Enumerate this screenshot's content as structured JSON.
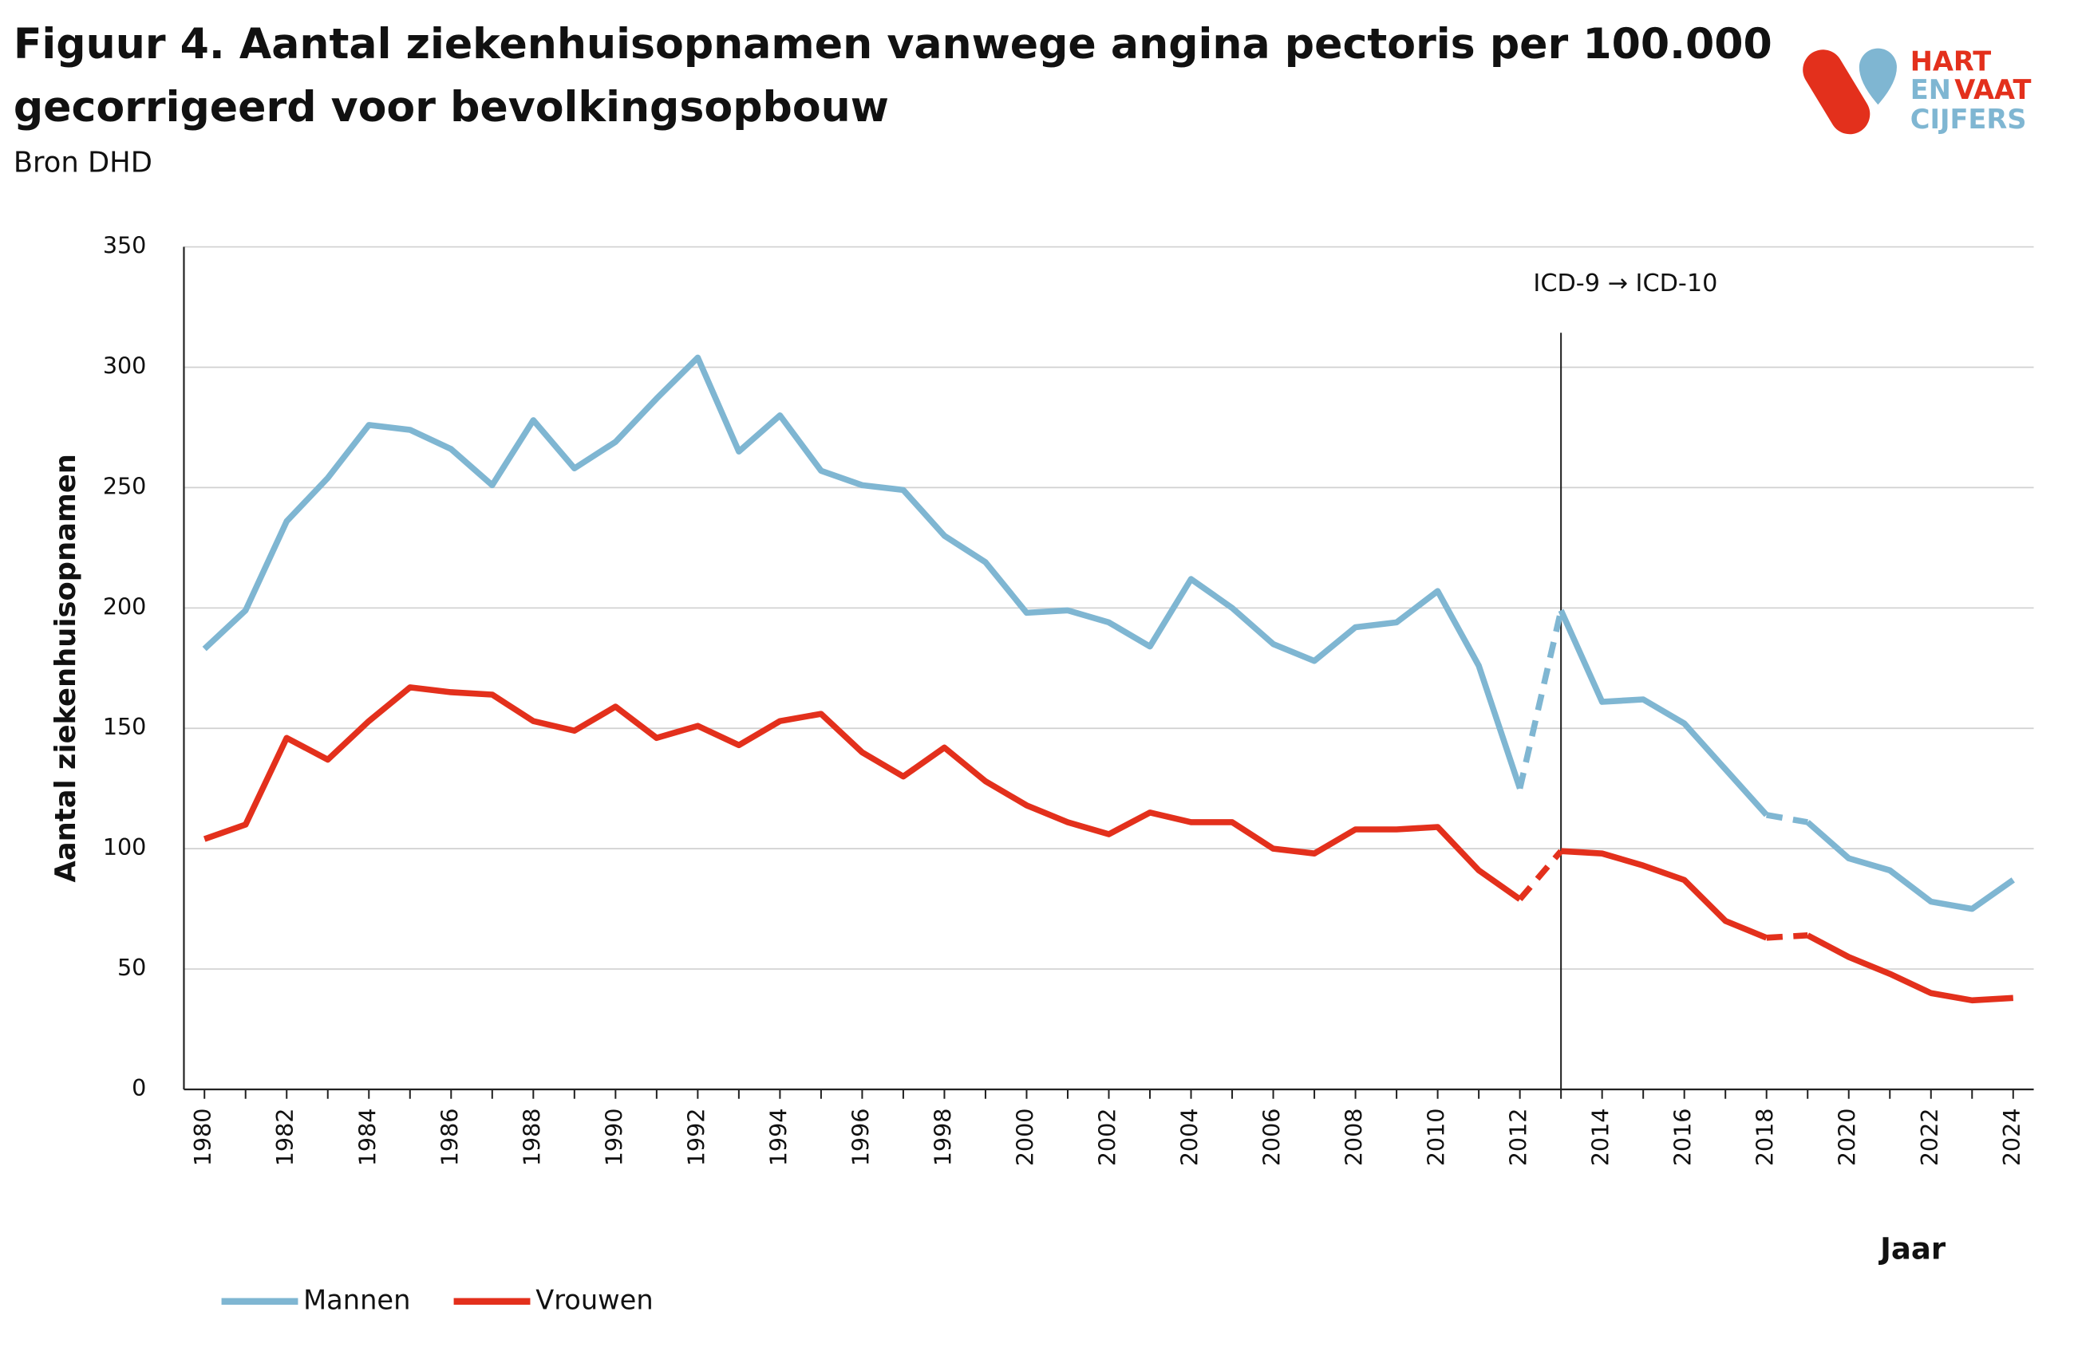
{
  "chart_data": {
    "type": "line",
    "title": "Figuur 4. Aantal ziekenhuisopnamen vanwege angina pectoris per 100.000",
    "title_line2": "gecorrigeerd voor bevolkingsopbouw",
    "subtitle": "Bron DHD",
    "logo": {
      "line1": "HART",
      "line2a": "EN",
      "line2b": "VAAT",
      "line3": "CIJFERS"
    },
    "y_label": "Aantal ziekenhuisopnamen",
    "x_label": "Jaar",
    "x": [
      1980,
      1981,
      1982,
      1983,
      1984,
      1985,
      1986,
      1987,
      1988,
      1989,
      1990,
      1991,
      1992,
      1993,
      1994,
      1995,
      1996,
      1997,
      1998,
      1999,
      2000,
      2001,
      2002,
      2003,
      2004,
      2005,
      2006,
      2007,
      2008,
      2009,
      2010,
      2011,
      2012,
      2013,
      2014,
      2015,
      2016,
      2017,
      2018,
      2019,
      2020,
      2021,
      2022,
      2023,
      2024
    ],
    "series": [
      {
        "name": "Mannen",
        "color": "#7fb6d2",
        "values": [
          183,
          199,
          236,
          254,
          276,
          274,
          266,
          251,
          278,
          258,
          269,
          287,
          304,
          265,
          280,
          257,
          251,
          249,
          230,
          219,
          198,
          199,
          194,
          184,
          212,
          200,
          185,
          178,
          192,
          194,
          207,
          176,
          125,
          199,
          161,
          162,
          152,
          133,
          114,
          111,
          96,
          91,
          78,
          75,
          87
        ]
      },
      {
        "name": "Vrouwen",
        "color": "#e3301c",
        "values": [
          104,
          110,
          146,
          137,
          153,
          167,
          165,
          164,
          153,
          149,
          159,
          146,
          151,
          143,
          153,
          156,
          140,
          130,
          142,
          128,
          118,
          111,
          106,
          115,
          111,
          111,
          100,
          98,
          108,
          108,
          109,
          91,
          79,
          99,
          98,
          93,
          87,
          70,
          63,
          64,
          55,
          48,
          40,
          37,
          38
        ]
      }
    ],
    "dashed_x": [
      [
        2012,
        2013
      ],
      [
        2018,
        2019
      ]
    ],
    "annotation": {
      "text": "ICD-9 → ICD-10",
      "x": 2013
    },
    "xlim": [
      1979.5,
      2024.5
    ],
    "xticks": [
      1980,
      1982,
      1984,
      1986,
      1988,
      1990,
      1992,
      1994,
      1996,
      1998,
      2000,
      2002,
      2004,
      2006,
      2008,
      2010,
      2012,
      2014,
      2016,
      2018,
      2020,
      2022,
      2024
    ],
    "ylim": [
      0,
      350
    ],
    "yticks": [
      0,
      50,
      100,
      150,
      200,
      250,
      300,
      350
    ],
    "grid": true,
    "legend": "bottom-left"
  }
}
